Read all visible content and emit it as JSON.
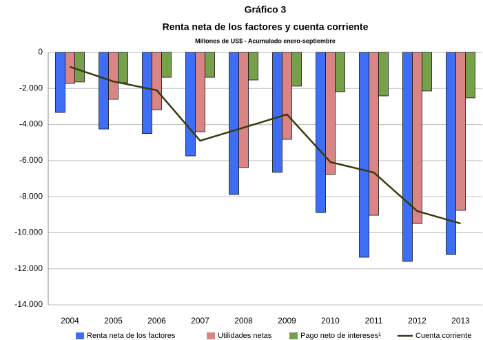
{
  "chart_data": {
    "type": "bar_line",
    "title": "Gráfico 3",
    "subtitle": "Renta neta de los factores y cuenta corriente",
    "note": "Millones de US$ - Acumulado enero-septiembre",
    "categories": [
      "2004",
      "2005",
      "2006",
      "2007",
      "2008",
      "2009",
      "2010",
      "2011",
      "2012",
      "2013"
    ],
    "series": [
      {
        "name": "Renta neta de los factores",
        "color": "#3e6ef5",
        "kind": "bar",
        "values": [
          -3330,
          -4250,
          -4500,
          -5740,
          -7880,
          -6650,
          -8880,
          -11360,
          -11590,
          -11210
        ]
      },
      {
        "name": "Utilidades netas",
        "color": "#d98585",
        "kind": "bar",
        "values": [
          -1720,
          -2600,
          -3180,
          -4400,
          -6390,
          -4820,
          -6770,
          -9030,
          -9490,
          -8760
        ]
      },
      {
        "name": "Pago neto de intereses¹",
        "color": "#77a04a",
        "kind": "bar",
        "values": [
          -1640,
          -1680,
          -1380,
          -1380,
          -1530,
          -1870,
          -2180,
          -2410,
          -2140,
          -2520
        ]
      },
      {
        "name": "Cuenta corriente",
        "color": "#3a3a0e",
        "kind": "line",
        "values": [
          -800,
          -1610,
          -2100,
          -4900,
          -4170,
          -3440,
          -6080,
          -6660,
          -8800,
          -9490
        ]
      }
    ],
    "ylim": [
      -14000,
      0
    ],
    "yticks": [
      {
        "value": -14000,
        "label": "-14.000"
      },
      {
        "value": -12000,
        "label": "-12.000"
      },
      {
        "value": -10000,
        "label": "-10.000"
      },
      {
        "value": -8000,
        "label": "-8.000"
      },
      {
        "value": -6000,
        "label": "-6.000"
      },
      {
        "value": -4000,
        "label": "-4.000"
      },
      {
        "value": -2000,
        "label": "-2.000"
      },
      0
    ],
    "grid": true,
    "legend": "bottom"
  }
}
